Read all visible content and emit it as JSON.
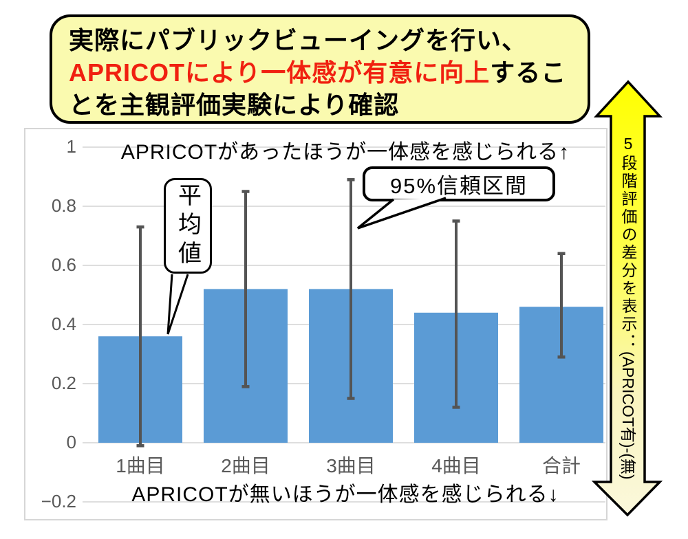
{
  "header_callout": {
    "bg_color": "#FAFAAF",
    "line1": "実際にパブリックビューイングを行い、",
    "line2_red": "APRICOTにより一体感が有意に向上",
    "line2_black": "するこ",
    "line3": "とを主観評価実験により確認"
  },
  "chart_data": {
    "type": "bar",
    "title": "APRICOTがあったほうが一体感を感じられる↑",
    "footer": "APRICOTが無いほうが一体感を感じられる↓",
    "categories": [
      "1曲目",
      "2曲目",
      "3曲目",
      "4曲目",
      "合計"
    ],
    "values": [
      0.36,
      0.52,
      0.52,
      0.44,
      0.46
    ],
    "error_low": [
      -0.01,
      0.19,
      0.15,
      0.12,
      0.29
    ],
    "error_high": [
      0.73,
      0.85,
      0.89,
      0.75,
      0.64
    ],
    "ylim": [
      -0.2,
      1
    ],
    "y_ticks": [
      1,
      0.8,
      0.6,
      0.4,
      0.2,
      0,
      -0.2
    ],
    "y_tick_labels": [
      "1",
      "0.8",
      "0.6",
      "0.4",
      "0.2",
      "0",
      "−0.2"
    ],
    "grid": true,
    "legend": "none",
    "bar_color": "#5B9BD5",
    "error_color": "#545454",
    "grid_color": "#D9D9D9"
  },
  "callouts": {
    "mean": "平均値",
    "ci": "95%信頼区間"
  },
  "side_arrow": {
    "text_upright": "5段階評価の差分を表示：",
    "text_sideways": "(APRICOT有)-(無)",
    "color_top": "#FFFF00",
    "color_bottom": "#FBF8DC"
  }
}
